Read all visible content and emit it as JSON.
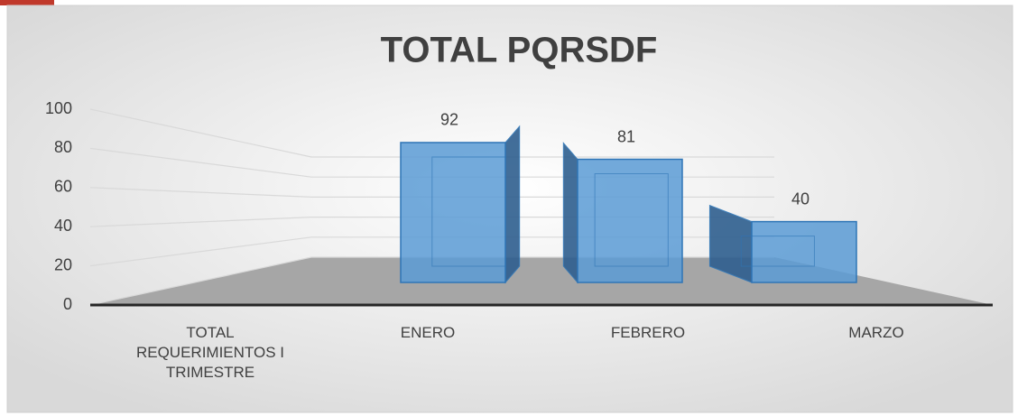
{
  "chart_data": {
    "type": "bar3d",
    "title": "TOTAL PQRSDF",
    "categories": [
      "TOTAL REQUERIMIENTOS I TRIMESTRE",
      "ENERO",
      "FEBRERO",
      "MARZO"
    ],
    "values": [
      null,
      92,
      81,
      40
    ],
    "color": "#5b9bd5",
    "ylim": [
      0,
      100
    ],
    "yticks": [
      0,
      20,
      40,
      60,
      80,
      100
    ],
    "grid": true
  }
}
